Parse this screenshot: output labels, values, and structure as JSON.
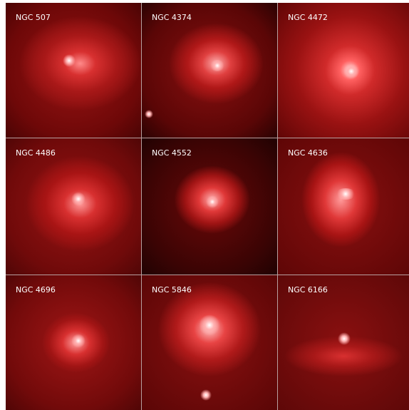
{
  "panels": [
    {
      "label": "NGC 507"
    },
    {
      "label": "NGC 4374"
    },
    {
      "label": "NGC 4472"
    },
    {
      "label": "NGC 4486"
    },
    {
      "label": "NGC 4552"
    },
    {
      "label": "NGC 4636"
    },
    {
      "label": "NGC 4696"
    },
    {
      "label": "NGC 5846"
    },
    {
      "label": "NGC 6166"
    }
  ]
}
